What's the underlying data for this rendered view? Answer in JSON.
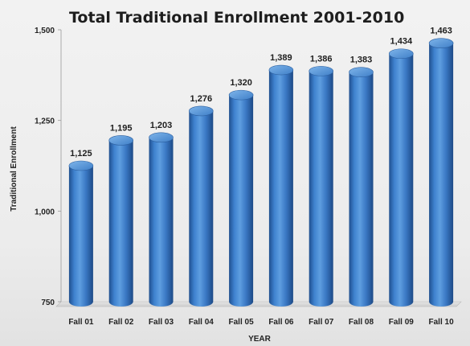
{
  "chart_data": {
    "type": "bar",
    "title": "Total Traditional Enrollment 2001-2010",
    "xlabel": "YEAR",
    "ylabel": "Traditional Enrollment",
    "categories": [
      "Fall 01",
      "Fall 02",
      "Fall 03",
      "Fall 04",
      "Fall 05",
      "Fall 06",
      "Fall 07",
      "Fall 08",
      "Fall 09",
      "Fall 10"
    ],
    "values": [
      1125,
      1195,
      1203,
      1276,
      1320,
      1389,
      1386,
      1383,
      1434,
      1463
    ],
    "data_labels": [
      "1,125",
      "1,195",
      "1,203",
      "1,276",
      "1,320",
      "1,389",
      "1,386",
      "1,383",
      "1,434",
      "1,463"
    ],
    "ylim": [
      750,
      1500
    ],
    "yticks": [
      750,
      1000,
      1250,
      1500
    ],
    "ytick_labels": [
      "750",
      "1,000",
      "1,250",
      "1,500"
    ],
    "bar_style": "3d-cylinder",
    "bar_color": "#3a78c4",
    "grid": false,
    "legend": "none"
  }
}
